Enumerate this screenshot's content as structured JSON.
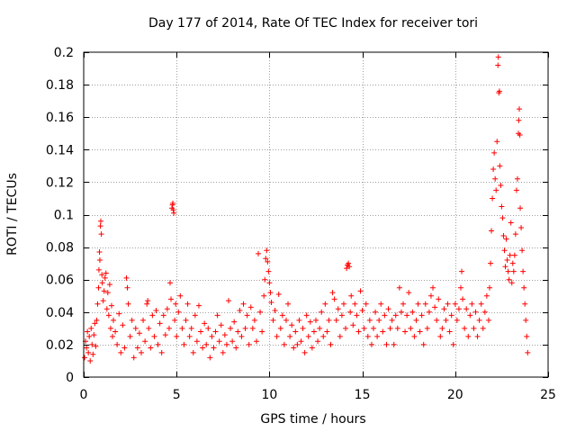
{
  "chart_data": {
    "type": "scatter",
    "title": "Day 177 of 2014, Rate Of TEC Index for receiver tori",
    "xlabel": "GPS time / hours",
    "ylabel": "ROTI / TECUs",
    "xlim": [
      0,
      25
    ],
    "ylim": [
      0,
      0.2
    ],
    "x_ticks": [
      0,
      5,
      10,
      15,
      20,
      25
    ],
    "x_tick_labels": [
      "0",
      "5",
      "10",
      "15",
      "20",
      "25"
    ],
    "y_ticks": [
      0,
      0.02,
      0.04,
      0.06,
      0.08,
      0.1,
      0.12,
      0.14,
      0.16,
      0.18,
      0.2
    ],
    "y_tick_labels": [
      "0",
      "0.02",
      "0.04",
      "0.06",
      "0.08",
      "0.1",
      "0.12",
      "0.14",
      "0.16",
      "0.18",
      "0.2"
    ],
    "grid": true,
    "marker": "+",
    "series": [
      {
        "name": "ROTI",
        "color": "#ff0000",
        "points": [
          [
            0.05,
            0.012
          ],
          [
            0.1,
            0.022
          ],
          [
            0.15,
            0.018
          ],
          [
            0.2,
            0.028
          ],
          [
            0.25,
            0.015
          ],
          [
            0.3,
            0.025
          ],
          [
            0.35,
            0.01
          ],
          [
            0.4,
            0.03
          ],
          [
            0.45,
            0.02
          ],
          [
            0.5,
            0.014
          ],
          [
            0.55,
            0.026
          ],
          [
            0.6,
            0.033
          ],
          [
            0.65,
            0.019
          ],
          [
            0.7,
            0.035
          ],
          [
            0.75,
            0.045
          ],
          [
            0.8,
            0.055
          ],
          [
            0.82,
            0.066
          ],
          [
            0.85,
            0.077
          ],
          [
            0.87,
            0.072
          ],
          [
            0.9,
            0.093
          ],
          [
            0.92,
            0.096
          ],
          [
            0.95,
            0.088
          ],
          [
            0.98,
            0.063
          ],
          [
            1.0,
            0.058
          ],
          [
            1.05,
            0.047
          ],
          [
            1.1,
            0.053
          ],
          [
            1.15,
            0.061
          ],
          [
            1.2,
            0.064
          ],
          [
            1.25,
            0.042
          ],
          [
            1.3,
            0.052
          ],
          [
            1.35,
            0.038
          ],
          [
            1.4,
            0.057
          ],
          [
            1.45,
            0.03
          ],
          [
            1.5,
            0.044
          ],
          [
            1.55,
            0.025
          ],
          [
            1.6,
            0.035
          ],
          [
            1.7,
            0.028
          ],
          [
            1.8,
            0.02
          ],
          [
            1.9,
            0.039
          ],
          [
            2.0,
            0.015
          ],
          [
            2.1,
            0.032
          ],
          [
            2.2,
            0.018
          ],
          [
            2.3,
            0.061
          ],
          [
            2.35,
            0.055
          ],
          [
            2.4,
            0.045
          ],
          [
            2.5,
            0.025
          ],
          [
            2.6,
            0.035
          ],
          [
            2.7,
            0.012
          ],
          [
            2.8,
            0.03
          ],
          [
            2.9,
            0.018
          ],
          [
            3.0,
            0.027
          ],
          [
            3.1,
            0.015
          ],
          [
            3.2,
            0.035
          ],
          [
            3.3,
            0.022
          ],
          [
            3.4,
            0.045
          ],
          [
            3.45,
            0.047
          ],
          [
            3.5,
            0.03
          ],
          [
            3.6,
            0.018
          ],
          [
            3.7,
            0.038
          ],
          [
            3.8,
            0.025
          ],
          [
            3.9,
            0.041
          ],
          [
            4.0,
            0.02
          ],
          [
            4.1,
            0.033
          ],
          [
            4.2,
            0.015
          ],
          [
            4.3,
            0.038
          ],
          [
            4.4,
            0.026
          ],
          [
            4.5,
            0.042
          ],
          [
            4.6,
            0.03
          ],
          [
            4.65,
            0.058
          ],
          [
            4.7,
            0.048
          ],
          [
            4.75,
            0.104
          ],
          [
            4.78,
            0.106
          ],
          [
            4.8,
            0.107
          ],
          [
            4.82,
            0.103
          ],
          [
            4.85,
            0.101
          ],
          [
            4.9,
            0.035
          ],
          [
            4.95,
            0.045
          ],
          [
            5.0,
            0.025
          ],
          [
            5.1,
            0.04
          ],
          [
            5.2,
            0.05
          ],
          [
            5.3,
            0.03
          ],
          [
            5.4,
            0.02
          ],
          [
            5.5,
            0.035
          ],
          [
            5.6,
            0.045
          ],
          [
            5.7,
            0.025
          ],
          [
            5.8,
            0.03
          ],
          [
            5.9,
            0.015
          ],
          [
            6.0,
            0.038
          ],
          [
            6.1,
            0.022
          ],
          [
            6.2,
            0.044
          ],
          [
            6.3,
            0.028
          ],
          [
            6.4,
            0.018
          ],
          [
            6.5,
            0.033
          ],
          [
            6.6,
            0.02
          ],
          [
            6.7,
            0.03
          ],
          [
            6.8,
            0.012
          ],
          [
            6.9,
            0.025
          ],
          [
            7.0,
            0.018
          ],
          [
            7.1,
            0.028
          ],
          [
            7.2,
            0.038
          ],
          [
            7.3,
            0.022
          ],
          [
            7.4,
            0.032
          ],
          [
            7.5,
            0.015
          ],
          [
            7.6,
            0.026
          ],
          [
            7.7,
            0.02
          ],
          [
            7.8,
            0.047
          ],
          [
            7.9,
            0.03
          ],
          [
            8.0,
            0.022
          ],
          [
            8.1,
            0.034
          ],
          [
            8.2,
            0.018
          ],
          [
            8.3,
            0.028
          ],
          [
            8.4,
            0.041
          ],
          [
            8.5,
            0.025
          ],
          [
            8.6,
            0.045
          ],
          [
            8.7,
            0.03
          ],
          [
            8.8,
            0.038
          ],
          [
            8.9,
            0.02
          ],
          [
            9.0,
            0.043
          ],
          [
            9.1,
            0.03
          ],
          [
            9.2,
            0.035
          ],
          [
            9.3,
            0.022
          ],
          [
            9.4,
            0.076
          ],
          [
            9.5,
            0.04
          ],
          [
            9.6,
            0.028
          ],
          [
            9.7,
            0.05
          ],
          [
            9.75,
            0.06
          ],
          [
            9.8,
            0.073
          ],
          [
            9.85,
            0.078
          ],
          [
            9.9,
            0.071
          ],
          [
            9.95,
            0.065
          ],
          [
            10.0,
            0.058
          ],
          [
            10.05,
            0.052
          ],
          [
            10.1,
            0.046
          ],
          [
            10.2,
            0.035
          ],
          [
            10.3,
            0.041
          ],
          [
            10.4,
            0.025
          ],
          [
            10.5,
            0.051
          ],
          [
            10.6,
            0.03
          ],
          [
            10.7,
            0.038
          ],
          [
            10.8,
            0.02
          ],
          [
            10.9,
            0.035
          ],
          [
            11.0,
            0.045
          ],
          [
            11.1,
            0.025
          ],
          [
            11.2,
            0.032
          ],
          [
            11.3,
            0.018
          ],
          [
            11.4,
            0.028
          ],
          [
            11.5,
            0.02
          ],
          [
            11.6,
            0.035
          ],
          [
            11.7,
            0.022
          ],
          [
            11.8,
            0.03
          ],
          [
            11.9,
            0.015
          ],
          [
            12.0,
            0.038
          ],
          [
            12.1,
            0.025
          ],
          [
            12.2,
            0.034
          ],
          [
            12.3,
            0.018
          ],
          [
            12.4,
            0.028
          ],
          [
            12.5,
            0.035
          ],
          [
            12.6,
            0.022
          ],
          [
            12.7,
            0.03
          ],
          [
            12.8,
            0.04
          ],
          [
            12.9,
            0.025
          ],
          [
            13.0,
            0.045
          ],
          [
            13.1,
            0.028
          ],
          [
            13.2,
            0.035
          ],
          [
            13.3,
            0.02
          ],
          [
            13.4,
            0.052
          ],
          [
            13.5,
            0.048
          ],
          [
            13.6,
            0.035
          ],
          [
            13.7,
            0.042
          ],
          [
            13.8,
            0.025
          ],
          [
            13.9,
            0.038
          ],
          [
            14.0,
            0.045
          ],
          [
            14.1,
            0.03
          ],
          [
            14.15,
            0.067
          ],
          [
            14.2,
            0.069
          ],
          [
            14.25,
            0.07
          ],
          [
            14.3,
            0.068
          ],
          [
            14.35,
            0.04
          ],
          [
            14.4,
            0.05
          ],
          [
            14.5,
            0.032
          ],
          [
            14.6,
            0.045
          ],
          [
            14.7,
            0.038
          ],
          [
            14.8,
            0.028
          ],
          [
            14.9,
            0.053
          ],
          [
            15.0,
            0.041
          ],
          [
            15.1,
            0.03
          ],
          [
            15.2,
            0.045
          ],
          [
            15.3,
            0.025
          ],
          [
            15.4,
            0.035
          ],
          [
            15.5,
            0.02
          ],
          [
            15.6,
            0.03
          ],
          [
            15.7,
            0.04
          ],
          [
            15.8,
            0.025
          ],
          [
            15.9,
            0.035
          ],
          [
            16.0,
            0.045
          ],
          [
            16.1,
            0.028
          ],
          [
            16.2,
            0.038
          ],
          [
            16.3,
            0.02
          ],
          [
            16.4,
            0.042
          ],
          [
            16.5,
            0.03
          ],
          [
            16.6,
            0.035
          ],
          [
            16.7,
            0.02
          ],
          [
            16.8,
            0.038
          ],
          [
            16.9,
            0.03
          ],
          [
            17.0,
            0.055
          ],
          [
            17.1,
            0.04
          ],
          [
            17.2,
            0.045
          ],
          [
            17.3,
            0.028
          ],
          [
            17.4,
            0.038
          ],
          [
            17.5,
            0.052
          ],
          [
            17.6,
            0.03
          ],
          [
            17.7,
            0.04
          ],
          [
            17.8,
            0.025
          ],
          [
            17.9,
            0.035
          ],
          [
            18.0,
            0.045
          ],
          [
            18.1,
            0.028
          ],
          [
            18.2,
            0.038
          ],
          [
            18.3,
            0.02
          ],
          [
            18.4,
            0.045
          ],
          [
            18.5,
            0.03
          ],
          [
            18.6,
            0.04
          ],
          [
            18.7,
            0.05
          ],
          [
            18.8,
            0.055
          ],
          [
            18.9,
            0.043
          ],
          [
            19.0,
            0.035
          ],
          [
            19.1,
            0.048
          ],
          [
            19.2,
            0.025
          ],
          [
            19.3,
            0.03
          ],
          [
            19.4,
            0.042
          ],
          [
            19.5,
            0.035
          ],
          [
            19.6,
            0.045
          ],
          [
            19.7,
            0.028
          ],
          [
            19.8,
            0.038
          ],
          [
            19.9,
            0.02
          ],
          [
            20.0,
            0.045
          ],
          [
            20.1,
            0.035
          ],
          [
            20.2,
            0.042
          ],
          [
            20.3,
            0.055
          ],
          [
            20.35,
            0.065
          ],
          [
            20.4,
            0.048
          ],
          [
            20.5,
            0.03
          ],
          [
            20.6,
            0.042
          ],
          [
            20.7,
            0.025
          ],
          [
            20.8,
            0.038
          ],
          [
            20.9,
            0.045
          ],
          [
            21.0,
            0.03
          ],
          [
            21.1,
            0.04
          ],
          [
            21.2,
            0.025
          ],
          [
            21.3,
            0.035
          ],
          [
            21.4,
            0.045
          ],
          [
            21.5,
            0.03
          ],
          [
            21.6,
            0.04
          ],
          [
            21.7,
            0.05
          ],
          [
            21.8,
            0.035
          ],
          [
            21.85,
            0.055
          ],
          [
            21.9,
            0.07
          ],
          [
            21.95,
            0.09
          ],
          [
            22.0,
            0.11
          ],
          [
            22.05,
            0.128
          ],
          [
            22.1,
            0.138
          ],
          [
            22.15,
            0.122
          ],
          [
            22.2,
            0.115
          ],
          [
            22.25,
            0.145
          ],
          [
            22.3,
            0.192
          ],
          [
            22.32,
            0.197
          ],
          [
            22.35,
            0.175
          ],
          [
            22.38,
            0.176
          ],
          [
            22.4,
            0.13
          ],
          [
            22.45,
            0.118
          ],
          [
            22.5,
            0.105
          ],
          [
            22.55,
            0.098
          ],
          [
            22.6,
            0.087
          ],
          [
            22.65,
            0.078
          ],
          [
            22.7,
            0.068
          ],
          [
            22.75,
            0.085
          ],
          [
            22.8,
            0.072
          ],
          [
            22.85,
            0.065
          ],
          [
            22.9,
            0.06
          ],
          [
            22.95,
            0.075
          ],
          [
            23.0,
            0.095
          ],
          [
            23.05,
            0.058
          ],
          [
            23.1,
            0.07
          ],
          [
            23.15,
            0.065
          ],
          [
            23.2,
            0.075
          ],
          [
            23.25,
            0.088
          ],
          [
            23.3,
            0.115
          ],
          [
            23.35,
            0.122
          ],
          [
            23.4,
            0.15
          ],
          [
            23.42,
            0.158
          ],
          [
            23.45,
            0.165
          ],
          [
            23.48,
            0.149
          ],
          [
            23.5,
            0.104
          ],
          [
            23.55,
            0.092
          ],
          [
            23.6,
            0.078
          ],
          [
            23.65,
            0.065
          ],
          [
            23.7,
            0.055
          ],
          [
            23.75,
            0.045
          ],
          [
            23.8,
            0.035
          ],
          [
            23.85,
            0.025
          ],
          [
            23.9,
            0.015
          ]
        ]
      }
    ]
  }
}
